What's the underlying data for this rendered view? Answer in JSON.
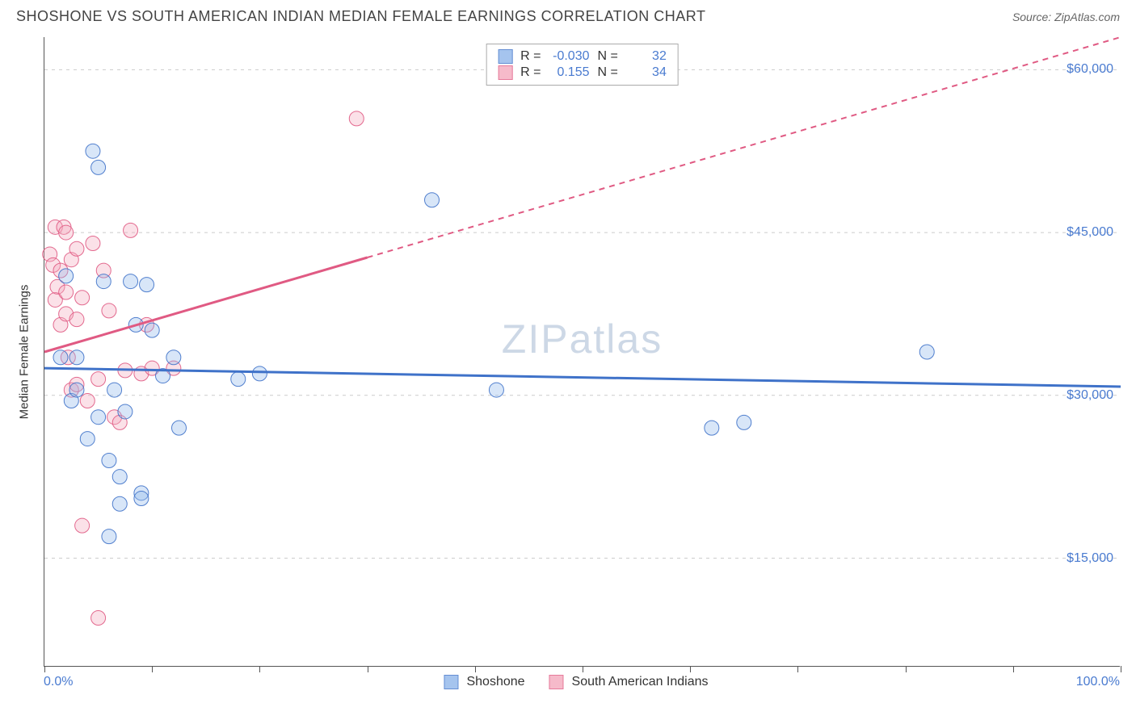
{
  "title": "SHOSHONE VS SOUTH AMERICAN INDIAN MEDIAN FEMALE EARNINGS CORRELATION CHART",
  "source": "Source: ZipAtlas.com",
  "ylabel": "Median Female Earnings",
  "watermark": "ZIPatlas",
  "chart": {
    "type": "scatter",
    "xlim": [
      0,
      100
    ],
    "ylim": [
      5000,
      63000
    ],
    "y_gridlines": [
      15000,
      30000,
      45000,
      60000
    ],
    "y_tick_labels": [
      "$15,000",
      "$30,000",
      "$45,000",
      "$60,000"
    ],
    "x_ticks": [
      0,
      10,
      20,
      30,
      40,
      50,
      60,
      70,
      80,
      90,
      100
    ],
    "x_axis_min_label": "0.0%",
    "x_axis_max_label": "100.0%",
    "grid_color": "#cccccc",
    "axis_color": "#555555",
    "background_color": "#ffffff",
    "label_color": "#4a7bd0",
    "marker_radius": 9,
    "marker_opacity": 0.35,
    "marker_stroke_opacity": 0.9,
    "trend_line_width": 3,
    "trend_dash": "7,6"
  },
  "series": {
    "shoshone": {
      "label": "Shoshone",
      "color_fill": "#8fb6ea",
      "color_stroke": "#3f72c9",
      "R": "-0.030",
      "N": "32",
      "trend": {
        "x1": 0,
        "y1": 32500,
        "x2": 100,
        "y2": 30800,
        "solid_until_x": 100
      },
      "points": [
        [
          1.5,
          33500
        ],
        [
          2,
          41000
        ],
        [
          2.5,
          29500
        ],
        [
          3,
          30500
        ],
        [
          3,
          33500
        ],
        [
          4,
          26000
        ],
        [
          4.5,
          52500
        ],
        [
          5,
          51000
        ],
        [
          5,
          28000
        ],
        [
          5.5,
          40500
        ],
        [
          6,
          24000
        ],
        [
          6,
          17000
        ],
        [
          6.5,
          30500
        ],
        [
          7,
          22500
        ],
        [
          7,
          20000
        ],
        [
          7.5,
          28500
        ],
        [
          8,
          40500
        ],
        [
          8.5,
          36500
        ],
        [
          9,
          21000
        ],
        [
          9,
          20500
        ],
        [
          9.5,
          40200
        ],
        [
          10,
          36000
        ],
        [
          11,
          31800
        ],
        [
          12,
          33500
        ],
        [
          12.5,
          27000
        ],
        [
          18,
          31500
        ],
        [
          20,
          32000
        ],
        [
          36,
          48000
        ],
        [
          42,
          30500
        ],
        [
          62,
          27000
        ],
        [
          65,
          27500
        ],
        [
          82,
          34000
        ]
      ]
    },
    "sai": {
      "label": "South American Indians",
      "color_fill": "#f4a9bd",
      "color_stroke": "#e05a83",
      "R": "0.155",
      "N": "34",
      "trend": {
        "x1": 0,
        "y1": 34000,
        "x2": 100,
        "y2": 63000,
        "solid_until_x": 30
      },
      "points": [
        [
          0.5,
          43000
        ],
        [
          0.8,
          42000
        ],
        [
          1,
          45500
        ],
        [
          1,
          38800
        ],
        [
          1.2,
          40000
        ],
        [
          1.5,
          41500
        ],
        [
          1.5,
          36500
        ],
        [
          1.8,
          45500
        ],
        [
          2,
          45000
        ],
        [
          2,
          39500
        ],
        [
          2,
          37500
        ],
        [
          2.2,
          33500
        ],
        [
          2.5,
          42500
        ],
        [
          2.5,
          30500
        ],
        [
          3,
          43500
        ],
        [
          3,
          37000
        ],
        [
          3,
          31000
        ],
        [
          3.5,
          39000
        ],
        [
          3.5,
          18000
        ],
        [
          4,
          29500
        ],
        [
          4.5,
          44000
        ],
        [
          5,
          31500
        ],
        [
          5,
          9500
        ],
        [
          5.5,
          41500
        ],
        [
          6,
          37800
        ],
        [
          6.5,
          28000
        ],
        [
          7,
          27500
        ],
        [
          7.5,
          32300
        ],
        [
          8,
          45200
        ],
        [
          9,
          32000
        ],
        [
          9.5,
          36500
        ],
        [
          10,
          32500
        ],
        [
          12,
          32500
        ],
        [
          29,
          55500
        ]
      ]
    }
  },
  "legend_top": {
    "r_label": "R =",
    "n_label": "N ="
  }
}
